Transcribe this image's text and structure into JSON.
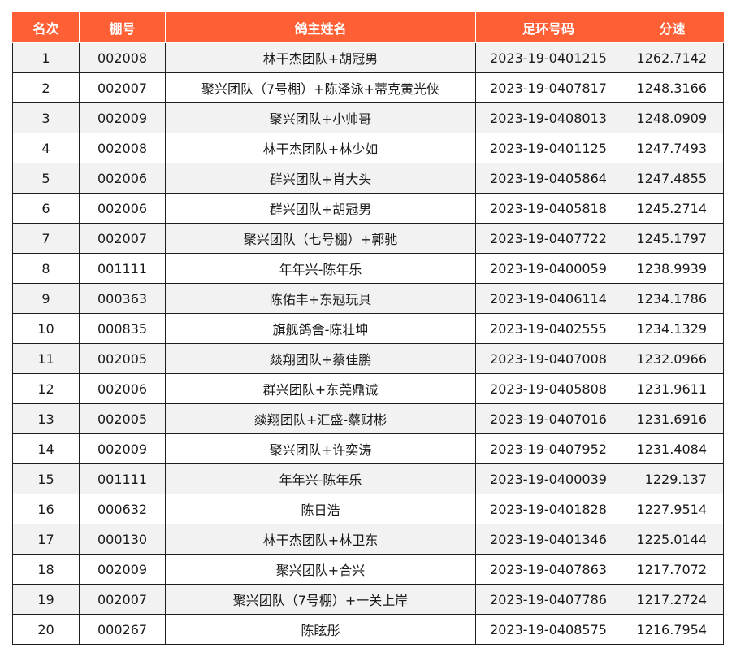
{
  "table": {
    "headers": {
      "rank": "名次",
      "shed": "棚号",
      "owner": "鸽主姓名",
      "ring": "足环号码",
      "speed": "分速"
    },
    "rows": [
      {
        "rank": "1",
        "shed": "002008",
        "owner": "林干杰团队+胡冠男",
        "ring": "2023-19-0401215",
        "speed": "1262.7142"
      },
      {
        "rank": "2",
        "shed": "002007",
        "owner": "聚兴团队（7号棚）+陈泽泳+蒂克黄光侠",
        "ring": "2023-19-0407817",
        "speed": "1248.3166"
      },
      {
        "rank": "3",
        "shed": "002009",
        "owner": "聚兴团队+小帅哥",
        "ring": "2023-19-0408013",
        "speed": "1248.0909"
      },
      {
        "rank": "4",
        "shed": "002008",
        "owner": "林干杰团队+林少如",
        "ring": "2023-19-0401125",
        "speed": "1247.7493"
      },
      {
        "rank": "5",
        "shed": "002006",
        "owner": "群兴团队+肖大头",
        "ring": "2023-19-0405864",
        "speed": "1247.4855"
      },
      {
        "rank": "6",
        "shed": "002006",
        "owner": "群兴团队+胡冠男",
        "ring": "2023-19-0405818",
        "speed": "1245.2714"
      },
      {
        "rank": "7",
        "shed": "002007",
        "owner": "聚兴团队（七号棚）+郭驰",
        "ring": "2023-19-0407722",
        "speed": "1245.1797"
      },
      {
        "rank": "8",
        "shed": "001111",
        "owner": "年年兴-陈年乐",
        "ring": "2023-19-0400059",
        "speed": "1238.9939"
      },
      {
        "rank": "9",
        "shed": "000363",
        "owner": "陈佑丰+东冠玩具",
        "ring": "2023-19-0406114",
        "speed": "1234.1786"
      },
      {
        "rank": "10",
        "shed": "000835",
        "owner": "旗舰鸽舍-陈壮坤",
        "ring": "2023-19-0402555",
        "speed": "1234.1329"
      },
      {
        "rank": "11",
        "shed": "002005",
        "owner": "燚翔团队+蔡佳鹏",
        "ring": "2023-19-0407008",
        "speed": "1232.0966"
      },
      {
        "rank": "12",
        "shed": "002006",
        "owner": "群兴团队+东莞鼎诚",
        "ring": "2023-19-0405808",
        "speed": "1231.9611"
      },
      {
        "rank": "13",
        "shed": "002005",
        "owner": "燚翔团队+汇盛-蔡财彬",
        "ring": "2023-19-0407016",
        "speed": "1231.6916"
      },
      {
        "rank": "14",
        "shed": "002009",
        "owner": "聚兴团队+许奕涛",
        "ring": "2023-19-0407952",
        "speed": "1231.4084"
      },
      {
        "rank": "15",
        "shed": "001111",
        "owner": "年年兴-陈年乐",
        "ring": "2023-19-0400039",
        "speed": "1229.137"
      },
      {
        "rank": "16",
        "shed": "000632",
        "owner": "陈日浩",
        "ring": "2023-19-0401828",
        "speed": "1227.9514"
      },
      {
        "rank": "17",
        "shed": "000130",
        "owner": "林干杰团队+林卫东",
        "ring": "2023-19-0401346",
        "speed": "1225.0144"
      },
      {
        "rank": "18",
        "shed": "002009",
        "owner": "聚兴团队+合兴",
        "ring": "2023-19-0407863",
        "speed": "1217.7072"
      },
      {
        "rank": "19",
        "shed": "002007",
        "owner": "聚兴团队（7号棚）+一关上岸",
        "ring": "2023-19-0407786",
        "speed": "1217.2724"
      },
      {
        "rank": "20",
        "shed": "000267",
        "owner": "陈眩彤",
        "ring": "2023-19-0408575",
        "speed": "1216.7954"
      }
    ]
  }
}
